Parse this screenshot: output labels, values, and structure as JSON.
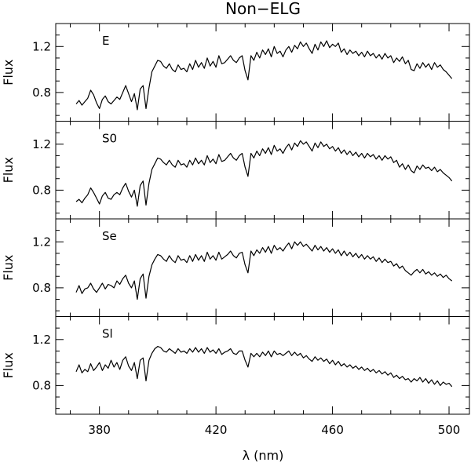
{
  "chart_data": {
    "type": "line",
    "title": "Non−ELG",
    "xlabel": "λ (nm)",
    "ylabel": "Flux",
    "xlim": [
      365,
      507
    ],
    "ylim": [
      0.55,
      1.4
    ],
    "x_ticks": [
      380,
      420,
      460,
      500
    ],
    "x_tick_labels": [
      "380",
      "420",
      "460",
      "500"
    ],
    "y_ticks": [
      0.8,
      1.2
    ],
    "y_tick_labels": [
      "0.8",
      "1.2"
    ],
    "grid": false,
    "legend": "none",
    "line_color": "#000000",
    "panels": [
      {
        "label": "E",
        "x": [
          372,
          373,
          374,
          375,
          376,
          377,
          378,
          379,
          380,
          381,
          382,
          383,
          384,
          385,
          386,
          387,
          388,
          389,
          390,
          391,
          392,
          393,
          394,
          395,
          396,
          397,
          398,
          399,
          400,
          401,
          402,
          403,
          404,
          405,
          406,
          407,
          408,
          409,
          410,
          411,
          412,
          413,
          414,
          415,
          416,
          417,
          418,
          419,
          420,
          421,
          422,
          423,
          424,
          425,
          426,
          427,
          428,
          429,
          430,
          431,
          432,
          433,
          434,
          435,
          436,
          437,
          438,
          439,
          440,
          441,
          442,
          443,
          444,
          445,
          446,
          447,
          448,
          449,
          450,
          451,
          452,
          453,
          454,
          455,
          456,
          457,
          458,
          459,
          460,
          461,
          462,
          463,
          464,
          465,
          466,
          467,
          468,
          469,
          470,
          471,
          472,
          473,
          474,
          475,
          476,
          477,
          478,
          479,
          480,
          481,
          482,
          483,
          484,
          485,
          486,
          487,
          488,
          489,
          490,
          491,
          492,
          493,
          494,
          495,
          496,
          497,
          498,
          499,
          500,
          501
        ],
        "values": [
          0.7,
          0.73,
          0.69,
          0.72,
          0.75,
          0.82,
          0.78,
          0.71,
          0.66,
          0.74,
          0.77,
          0.72,
          0.7,
          0.73,
          0.76,
          0.74,
          0.8,
          0.86,
          0.79,
          0.72,
          0.79,
          0.65,
          0.83,
          0.86,
          0.66,
          0.84,
          0.98,
          1.03,
          1.08,
          1.07,
          1.03,
          1.01,
          1.05,
          1.0,
          0.98,
          1.04,
          1.0,
          1.01,
          0.98,
          1.05,
          1.0,
          1.08,
          1.02,
          1.06,
          1.01,
          1.1,
          1.03,
          1.07,
          1.02,
          1.12,
          1.05,
          1.06,
          1.09,
          1.12,
          1.08,
          1.06,
          1.1,
          1.12,
          0.99,
          0.91,
          1.12,
          1.08,
          1.15,
          1.1,
          1.17,
          1.13,
          1.18,
          1.11,
          1.2,
          1.14,
          1.16,
          1.11,
          1.17,
          1.2,
          1.15,
          1.21,
          1.18,
          1.24,
          1.2,
          1.23,
          1.18,
          1.14,
          1.22,
          1.17,
          1.24,
          1.2,
          1.25,
          1.19,
          1.22,
          1.2,
          1.23,
          1.15,
          1.18,
          1.13,
          1.17,
          1.14,
          1.16,
          1.12,
          1.15,
          1.11,
          1.16,
          1.12,
          1.14,
          1.1,
          1.13,
          1.09,
          1.14,
          1.1,
          1.12,
          1.06,
          1.1,
          1.07,
          1.11,
          1.05,
          1.08,
          1.0,
          0.99,
          1.05,
          1.01,
          1.06,
          1.02,
          1.05,
          1.0,
          1.06,
          1.02,
          1.04,
          1.0,
          0.98,
          0.95,
          0.92
        ]
      },
      {
        "label": "S0",
        "x": [
          372,
          373,
          374,
          375,
          376,
          377,
          378,
          379,
          380,
          381,
          382,
          383,
          384,
          385,
          386,
          387,
          388,
          389,
          390,
          391,
          392,
          393,
          394,
          395,
          396,
          397,
          398,
          399,
          400,
          401,
          402,
          403,
          404,
          405,
          406,
          407,
          408,
          409,
          410,
          411,
          412,
          413,
          414,
          415,
          416,
          417,
          418,
          419,
          420,
          421,
          422,
          423,
          424,
          425,
          426,
          427,
          428,
          429,
          430,
          431,
          432,
          433,
          434,
          435,
          436,
          437,
          438,
          439,
          440,
          441,
          442,
          443,
          444,
          445,
          446,
          447,
          448,
          449,
          450,
          451,
          452,
          453,
          454,
          455,
          456,
          457,
          458,
          459,
          460,
          461,
          462,
          463,
          464,
          465,
          466,
          467,
          468,
          469,
          470,
          471,
          472,
          473,
          474,
          475,
          476,
          477,
          478,
          479,
          480,
          481,
          482,
          483,
          484,
          485,
          486,
          487,
          488,
          489,
          490,
          491,
          492,
          493,
          494,
          495,
          496,
          497,
          498,
          499,
          500,
          501
        ],
        "values": [
          0.7,
          0.72,
          0.69,
          0.73,
          0.76,
          0.82,
          0.78,
          0.73,
          0.68,
          0.75,
          0.78,
          0.73,
          0.72,
          0.76,
          0.78,
          0.76,
          0.82,
          0.86,
          0.79,
          0.74,
          0.8,
          0.66,
          0.84,
          0.88,
          0.67,
          0.86,
          0.98,
          1.03,
          1.08,
          1.07,
          1.04,
          1.02,
          1.06,
          1.02,
          1.0,
          1.06,
          1.02,
          1.03,
          1.0,
          1.06,
          1.02,
          1.08,
          1.03,
          1.06,
          1.02,
          1.1,
          1.04,
          1.07,
          1.03,
          1.11,
          1.05,
          1.06,
          1.09,
          1.12,
          1.08,
          1.06,
          1.1,
          1.12,
          1.0,
          0.92,
          1.12,
          1.08,
          1.14,
          1.1,
          1.16,
          1.12,
          1.17,
          1.11,
          1.19,
          1.14,
          1.16,
          1.12,
          1.17,
          1.2,
          1.15,
          1.21,
          1.18,
          1.23,
          1.2,
          1.22,
          1.18,
          1.14,
          1.21,
          1.17,
          1.22,
          1.18,
          1.2,
          1.16,
          1.18,
          1.14,
          1.17,
          1.12,
          1.15,
          1.11,
          1.14,
          1.1,
          1.13,
          1.09,
          1.12,
          1.08,
          1.12,
          1.09,
          1.11,
          1.07,
          1.1,
          1.06,
          1.1,
          1.07,
          1.09,
          1.04,
          1.06,
          1.0,
          1.03,
          0.98,
          1.02,
          0.97,
          0.95,
          1.01,
          0.98,
          1.02,
          0.99,
          1.0,
          0.97,
          1.0,
          0.96,
          0.98,
          0.95,
          0.93,
          0.91,
          0.88
        ]
      },
      {
        "label": "Se",
        "x": [
          372,
          373,
          374,
          375,
          376,
          377,
          378,
          379,
          380,
          381,
          382,
          383,
          384,
          385,
          386,
          387,
          388,
          389,
          390,
          391,
          392,
          393,
          394,
          395,
          396,
          397,
          398,
          399,
          400,
          401,
          402,
          403,
          404,
          405,
          406,
          407,
          408,
          409,
          410,
          411,
          412,
          413,
          414,
          415,
          416,
          417,
          418,
          419,
          420,
          421,
          422,
          423,
          424,
          425,
          426,
          427,
          428,
          429,
          430,
          431,
          432,
          433,
          434,
          435,
          436,
          437,
          438,
          439,
          440,
          441,
          442,
          443,
          444,
          445,
          446,
          447,
          448,
          449,
          450,
          451,
          452,
          453,
          454,
          455,
          456,
          457,
          458,
          459,
          460,
          461,
          462,
          463,
          464,
          465,
          466,
          467,
          468,
          469,
          470,
          471,
          472,
          473,
          474,
          475,
          476,
          477,
          478,
          479,
          480,
          481,
          482,
          483,
          484,
          485,
          486,
          487,
          488,
          489,
          490,
          491,
          492,
          493,
          494,
          495,
          496,
          497,
          498,
          499,
          500,
          501
        ],
        "values": [
          0.76,
          0.82,
          0.75,
          0.79,
          0.8,
          0.84,
          0.79,
          0.76,
          0.8,
          0.84,
          0.79,
          0.83,
          0.82,
          0.8,
          0.86,
          0.83,
          0.88,
          0.91,
          0.84,
          0.8,
          0.86,
          0.7,
          0.88,
          0.92,
          0.71,
          0.9,
          1.0,
          1.05,
          1.09,
          1.08,
          1.05,
          1.03,
          1.08,
          1.04,
          1.02,
          1.08,
          1.04,
          1.05,
          1.02,
          1.08,
          1.03,
          1.09,
          1.04,
          1.08,
          1.03,
          1.11,
          1.05,
          1.08,
          1.04,
          1.11,
          1.05,
          1.07,
          1.09,
          1.12,
          1.08,
          1.06,
          1.1,
          1.11,
          1.0,
          0.93,
          1.12,
          1.08,
          1.13,
          1.1,
          1.15,
          1.11,
          1.16,
          1.1,
          1.17,
          1.13,
          1.15,
          1.12,
          1.16,
          1.19,
          1.14,
          1.2,
          1.17,
          1.2,
          1.16,
          1.18,
          1.15,
          1.12,
          1.17,
          1.13,
          1.16,
          1.12,
          1.15,
          1.11,
          1.14,
          1.1,
          1.13,
          1.08,
          1.12,
          1.08,
          1.11,
          1.07,
          1.1,
          1.06,
          1.09,
          1.05,
          1.08,
          1.05,
          1.07,
          1.03,
          1.06,
          1.02,
          1.05,
          1.02,
          1.03,
          0.99,
          1.01,
          0.97,
          0.99,
          0.95,
          0.93,
          0.91,
          0.94,
          0.96,
          0.93,
          0.96,
          0.92,
          0.94,
          0.91,
          0.93,
          0.9,
          0.92,
          0.89,
          0.91,
          0.88,
          0.86
        ]
      },
      {
        "label": "Sl",
        "x": [
          372,
          373,
          374,
          375,
          376,
          377,
          378,
          379,
          380,
          381,
          382,
          383,
          384,
          385,
          386,
          387,
          388,
          389,
          390,
          391,
          392,
          393,
          394,
          395,
          396,
          397,
          398,
          399,
          400,
          401,
          402,
          403,
          404,
          405,
          406,
          407,
          408,
          409,
          410,
          411,
          412,
          413,
          414,
          415,
          416,
          417,
          418,
          419,
          420,
          421,
          422,
          423,
          424,
          425,
          426,
          427,
          428,
          429,
          430,
          431,
          432,
          433,
          434,
          435,
          436,
          437,
          438,
          439,
          440,
          441,
          442,
          443,
          444,
          445,
          446,
          447,
          448,
          449,
          450,
          451,
          452,
          453,
          454,
          455,
          456,
          457,
          458,
          459,
          460,
          461,
          462,
          463,
          464,
          465,
          466,
          467,
          468,
          469,
          470,
          471,
          472,
          473,
          474,
          475,
          476,
          477,
          478,
          479,
          480,
          481,
          482,
          483,
          484,
          485,
          486,
          487,
          488,
          489,
          490,
          491,
          492,
          493,
          494,
          495,
          496,
          497,
          498,
          499,
          500,
          501
        ],
        "values": [
          0.92,
          0.98,
          0.91,
          0.94,
          0.92,
          0.99,
          0.93,
          0.96,
          1.0,
          0.93,
          0.98,
          0.95,
          1.02,
          0.96,
          1.0,
          0.94,
          1.02,
          1.05,
          0.97,
          0.93,
          1.0,
          0.86,
          1.02,
          1.04,
          0.84,
          1.02,
          1.08,
          1.12,
          1.14,
          1.13,
          1.1,
          1.09,
          1.12,
          1.1,
          1.08,
          1.12,
          1.09,
          1.1,
          1.08,
          1.12,
          1.09,
          1.13,
          1.09,
          1.12,
          1.08,
          1.13,
          1.09,
          1.11,
          1.08,
          1.12,
          1.07,
          1.09,
          1.1,
          1.12,
          1.08,
          1.07,
          1.1,
          1.1,
          1.02,
          0.96,
          1.08,
          1.05,
          1.08,
          1.05,
          1.09,
          1.06,
          1.1,
          1.05,
          1.1,
          1.07,
          1.08,
          1.06,
          1.08,
          1.1,
          1.06,
          1.09,
          1.06,
          1.08,
          1.04,
          1.06,
          1.03,
          1.01,
          1.05,
          1.02,
          1.04,
          1.01,
          1.03,
          0.99,
          1.02,
          0.98,
          1.01,
          0.97,
          0.99,
          0.96,
          0.98,
          0.95,
          0.97,
          0.94,
          0.96,
          0.93,
          0.95,
          0.92,
          0.94,
          0.91,
          0.93,
          0.9,
          0.92,
          0.89,
          0.91,
          0.87,
          0.89,
          0.86,
          0.88,
          0.85,
          0.86,
          0.83,
          0.86,
          0.84,
          0.87,
          0.83,
          0.86,
          0.82,
          0.85,
          0.81,
          0.84,
          0.8,
          0.83,
          0.81,
          0.82,
          0.79
        ]
      }
    ]
  }
}
